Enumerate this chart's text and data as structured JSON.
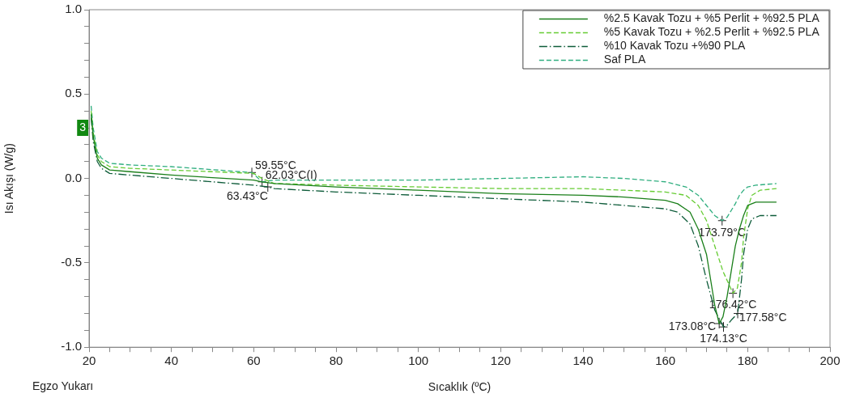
{
  "chart_data": {
    "type": "line",
    "xlabel": "Sıcaklık (ºC)",
    "ylabel": "Isı Akışı (W/g)",
    "xlim": [
      20,
      200
    ],
    "xticks": [
      20,
      {
        "value": 25,
        "label": null
      },
      {
        "value": 30,
        "label": null
      },
      {
        "value": 35,
        "label": null
      },
      40,
      {
        "value": 45,
        "label": null
      },
      {
        "value": 50,
        "label": null
      },
      {
        "value": 55,
        "label": null
      },
      60,
      {
        "value": 65,
        "label": null
      },
      {
        "value": 70,
        "label": null
      },
      {
        "value": 75,
        "label": null
      },
      80,
      {
        "value": 85,
        "label": null
      },
      {
        "value": 90,
        "label": null
      },
      {
        "value": 95,
        "label": null
      },
      100,
      {
        "value": 105,
        "label": null
      },
      {
        "value": 110,
        "label": null
      },
      {
        "value": 115,
        "label": null
      },
      120,
      {
        "value": 125,
        "label": null
      },
      {
        "value": 130,
        "label": null
      },
      {
        "value": 135,
        "label": null
      },
      140,
      {
        "value": 145,
        "label": null
      },
      {
        "value": 150,
        "label": null
      },
      {
        "value": 155,
        "label": null
      },
      160,
      {
        "value": 165,
        "label": null
      },
      {
        "value": 170,
        "label": null
      },
      {
        "value": 175,
        "label": null
      },
      180,
      {
        "value": 185,
        "label": null
      },
      {
        "value": 190,
        "label": null
      },
      {
        "value": 195,
        "label": null
      },
      200
    ],
    "ylim": [
      -1,
      1
    ],
    "yticks": [
      {
        "value": -1,
        "label": "-1.0"
      },
      {
        "value": -0.9,
        "label": null
      },
      {
        "value": -0.8,
        "label": null
      },
      {
        "value": -0.7,
        "label": null
      },
      {
        "value": -0.6,
        "label": null
      },
      {
        "value": -0.5,
        "label": "-0.5"
      },
      {
        "value": -0.4,
        "label": null
      },
      {
        "value": -0.3,
        "label": null
      },
      {
        "value": -0.2,
        "label": null
      },
      {
        "value": -0.1,
        "label": null
      },
      {
        "value": 0,
        "label": "0.0"
      },
      {
        "value": 0.1,
        "label": null
      },
      {
        "value": 0.2,
        "label": null
      },
      {
        "value": 0.3,
        "label": null
      },
      {
        "value": 0.4,
        "label": null
      },
      {
        "value": 0.5,
        "label": "0.5"
      },
      {
        "value": 0.6,
        "label": null
      },
      {
        "value": 0.7,
        "label": null
      },
      {
        "value": 0.8,
        "label": null
      },
      {
        "value": 0.9,
        "label": null
      },
      {
        "value": 1,
        "label": "1.0"
      }
    ],
    "grid": false,
    "legend": "top right",
    "marker": "none",
    "series": [
      {
        "name": "%2.5 Kavak Tozu + %5 Perlit + %92.5 PLA",
        "color": "#1a7f1a",
        "line_style": "solid",
        "x": [
          20.5,
          21,
          22,
          23,
          25,
          30,
          40,
          60,
          62,
          65,
          80,
          100,
          120,
          140,
          150,
          160,
          163,
          166,
          168,
          170,
          171,
          172,
          173.08,
          174,
          175,
          176,
          177,
          178,
          179,
          180,
          182,
          187
        ],
        "values": [
          0.38,
          0.25,
          0.12,
          0.08,
          0.05,
          0.04,
          0.02,
          -0.01,
          -0.02,
          -0.03,
          -0.05,
          -0.07,
          -0.09,
          -0.1,
          -0.11,
          -0.13,
          -0.15,
          -0.2,
          -0.3,
          -0.45,
          -0.6,
          -0.75,
          -0.86,
          -0.82,
          -0.7,
          -0.55,
          -0.4,
          -0.3,
          -0.22,
          -0.16,
          -0.14,
          -0.14
        ]
      },
      {
        "name": "%5 Kavak Tozu + %2.5 Perlit + %92.5 PLA",
        "color": "#66cc33",
        "line_style": "dashed",
        "x": [
          20.5,
          21,
          22,
          23,
          25,
          30,
          40,
          60,
          62,
          65,
          80,
          100,
          120,
          140,
          150,
          160,
          165,
          168,
          170,
          172,
          174,
          176.42,
          177.5,
          178.5,
          179,
          180,
          181,
          183,
          187
        ],
        "values": [
          0.4,
          0.27,
          0.14,
          0.1,
          0.07,
          0.06,
          0.05,
          0.03,
          0.0,
          -0.03,
          -0.04,
          -0.05,
          -0.06,
          -0.06,
          -0.07,
          -0.08,
          -0.1,
          -0.16,
          -0.25,
          -0.4,
          -0.55,
          -0.68,
          -0.65,
          -0.5,
          -0.35,
          -0.18,
          -0.1,
          -0.07,
          -0.06
        ]
      },
      {
        "name": "%10 Kavak Tozu +%90 PLA",
        "color": "#0e5c3a",
        "line_style": "dotted",
        "x": [
          20.5,
          21,
          22,
          23,
          25,
          30,
          40,
          60,
          63.43,
          65,
          80,
          100,
          120,
          140,
          150,
          160,
          163,
          166,
          168,
          170,
          172,
          174.13,
          175,
          176,
          177.58,
          178.5,
          179,
          180,
          181,
          183,
          187
        ],
        "values": [
          0.36,
          0.22,
          0.1,
          0.06,
          0.03,
          0.02,
          0.0,
          -0.04,
          -0.05,
          -0.06,
          -0.08,
          -0.1,
          -0.12,
          -0.14,
          -0.16,
          -0.18,
          -0.2,
          -0.27,
          -0.4,
          -0.6,
          -0.78,
          -0.88,
          -0.87,
          -0.84,
          -0.8,
          -0.6,
          -0.45,
          -0.3,
          -0.24,
          -0.22,
          -0.22
        ]
      },
      {
        "name": "Saf PLA",
        "color": "#2fae7f",
        "line_style": "dashed",
        "x": [
          20.5,
          21,
          22,
          23,
          25,
          30,
          40,
          59.55,
          62.03,
          65,
          80,
          100,
          120,
          140,
          150,
          160,
          165,
          168,
          170,
          172,
          173.79,
          175,
          177,
          178,
          179,
          180,
          182,
          187
        ],
        "values": [
          0.43,
          0.3,
          0.16,
          0.12,
          0.09,
          0.08,
          0.07,
          0.035,
          -0.02,
          -0.01,
          -0.01,
          -0.01,
          0.0,
          0.01,
          0.0,
          -0.02,
          -0.05,
          -0.1,
          -0.16,
          -0.22,
          -0.25,
          -0.23,
          -0.15,
          -0.1,
          -0.07,
          -0.05,
          -0.04,
          -0.03
        ]
      }
    ],
    "annotations": [
      "Egzo Yukarı",
      {
        "text": "3",
        "x": 20,
        "y": 0.3
      },
      {
        "text": "59.55°C",
        "x": 59.55,
        "y": 0.035
      },
      {
        "text": "62.03°C(I)",
        "x": 62.03,
        "y": -0.02
      },
      {
        "text": "63.43°C",
        "x": 63.43,
        "y": -0.05
      },
      {
        "text": "173.79°C",
        "x": 173.79,
        "y": -0.25
      },
      {
        "text": "176.42°C",
        "x": 176.42,
        "y": -0.68
      },
      {
        "text": "173.08°C",
        "x": 173.08,
        "y": -0.86
      },
      {
        "text": "177.58°C",
        "x": 177.58,
        "y": -0.8
      },
      {
        "text": "174.13°C",
        "x": 174.13,
        "y": -0.88
      }
    ]
  }
}
